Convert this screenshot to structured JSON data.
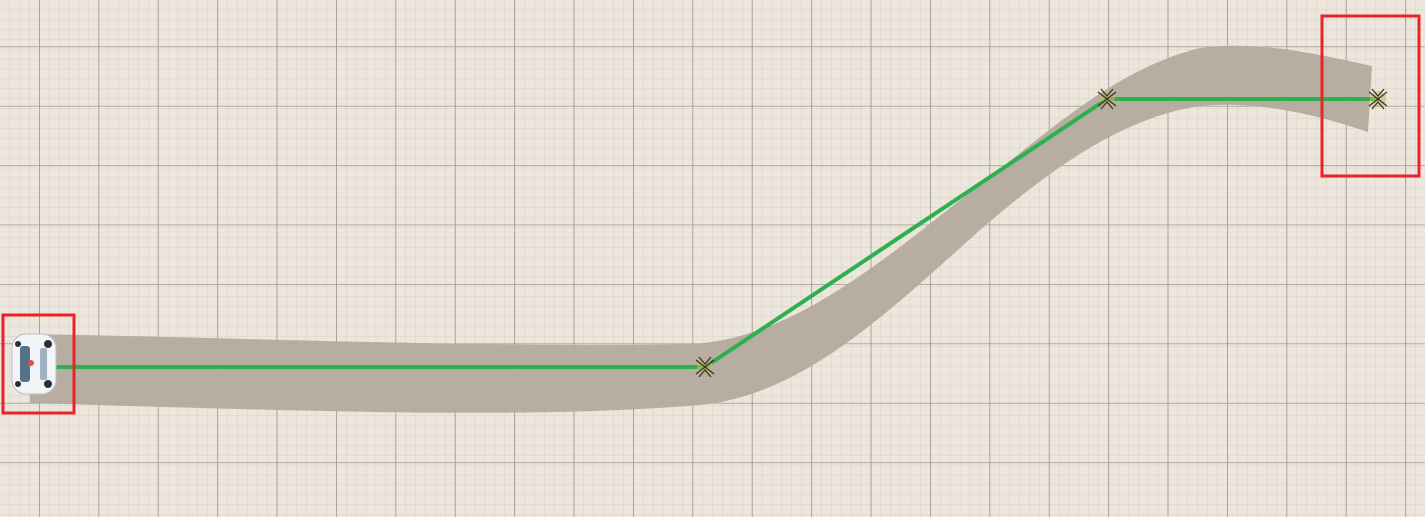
{
  "scene": {
    "type": "top-down-path-planning-view",
    "colors": {
      "paper": "#e9e3d8",
      "grid_minor": "#c9c1b6",
      "grid_major": "#9c958c",
      "road": "#b3aa9c",
      "path_line": "#2fb04e",
      "highlight_box": "#e8242a",
      "car_body": "#f2f4f6",
      "car_window": "#3a5a78"
    },
    "start": {
      "icon": "car-icon",
      "highlighted": true
    },
    "waypoints": [
      {
        "icon": "waypoint-marker-icon"
      },
      {
        "icon": "waypoint-marker-icon"
      }
    ],
    "goal": {
      "icon": "goal-marker-icon",
      "highlighted": true
    }
  }
}
